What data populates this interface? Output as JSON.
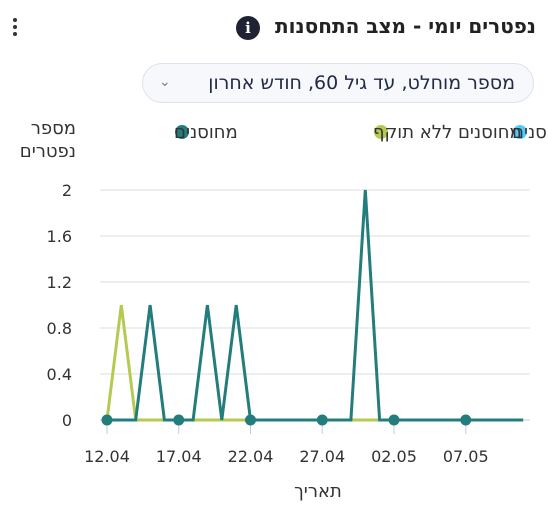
{
  "header": {
    "title": "נפטרים יומי - מצב התחסנות",
    "info_icon": "info-icon",
    "menu_icon": "kebab-menu-icon"
  },
  "filter": {
    "selected": "מספר מוחלט, עד גיל 60, חודש אחרון",
    "icon": "chevron-down-icon"
  },
  "chart_data": {
    "type": "line",
    "ylabel": [
      "מספר",
      "נפטרים"
    ],
    "xlabel": "תאריך",
    "ylim": [
      0,
      2
    ],
    "yticks": [
      "0",
      "0.4",
      "0.8",
      "1.2",
      "1.6",
      "2"
    ],
    "xticks": [
      {
        "label": "12.04",
        "day": 0
      },
      {
        "label": "17.04",
        "day": 5
      },
      {
        "label": "22.04",
        "day": 10
      },
      {
        "label": "27.04",
        "day": 15
      },
      {
        "label": "02.05",
        "day": 20
      },
      {
        "label": "07.05",
        "day": 25
      }
    ],
    "legend_position": "top",
    "grid": true,
    "series": [
      {
        "name": "לא מחוסנים",
        "color": "#50cbfd",
        "values": [
          0,
          0,
          0,
          0,
          0,
          0,
          0,
          0,
          0,
          0,
          0,
          0,
          0,
          0,
          0,
          0,
          0,
          0,
          0,
          0,
          0,
          0,
          0,
          0,
          0,
          0,
          0,
          0,
          0,
          0
        ]
      },
      {
        "name": "מחוסנים ללא תוקף",
        "color": "#b6ca51",
        "values": [
          0,
          1,
          0,
          0,
          0,
          0,
          0,
          0,
          0,
          0,
          0,
          0,
          0,
          0,
          0,
          0,
          0,
          0,
          0,
          0,
          0,
          0,
          0,
          0,
          0,
          0,
          0,
          0,
          0,
          0
        ]
      },
      {
        "name": "מחוסנים",
        "color": "#237d7c",
        "values": [
          0,
          0,
          0,
          1,
          0,
          0,
          0,
          1,
          0,
          1,
          0,
          0,
          0,
          0,
          0,
          0,
          0,
          0,
          2,
          0,
          0,
          0,
          0,
          0,
          0,
          0,
          0,
          0,
          0,
          0
        ],
        "markers_days": [
          0,
          5,
          10,
          15,
          20,
          25
        ]
      }
    ]
  }
}
